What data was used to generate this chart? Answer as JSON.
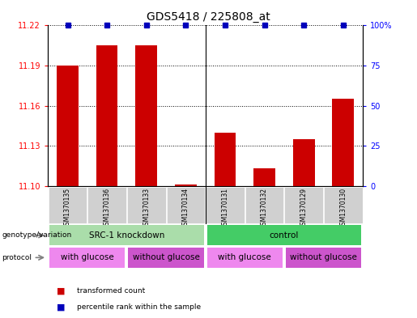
{
  "title": "GDS5418 / 225808_at",
  "samples": [
    "GSM1370135",
    "GSM1370136",
    "GSM1370133",
    "GSM1370134",
    "GSM1370131",
    "GSM1370132",
    "GSM1370129",
    "GSM1370130"
  ],
  "transformed_counts": [
    11.19,
    11.205,
    11.205,
    11.101,
    11.14,
    11.113,
    11.135,
    11.165
  ],
  "percentile_ranks": [
    100,
    100,
    100,
    100,
    100,
    100,
    100,
    100
  ],
  "ylim_left": [
    11.1,
    11.22
  ],
  "ylim_right": [
    0,
    100
  ],
  "yticks_left": [
    11.1,
    11.13,
    11.16,
    11.19,
    11.22
  ],
  "yticks_right": [
    0,
    25,
    50,
    75,
    100
  ],
  "bar_color": "#cc0000",
  "dot_color": "#0000bb",
  "genotype_groups": [
    {
      "label": "SRC-1 knockdown",
      "start": 0,
      "end": 4,
      "color": "#aaddaa"
    },
    {
      "label": "control",
      "start": 4,
      "end": 8,
      "color": "#44cc66"
    }
  ],
  "protocol_groups": [
    {
      "label": "with glucose",
      "start": 0,
      "end": 2,
      "color": "#ee88ee"
    },
    {
      "label": "without glucose",
      "start": 2,
      "end": 4,
      "color": "#cc55cc"
    },
    {
      "label": "with glucose",
      "start": 4,
      "end": 6,
      "color": "#ee88ee"
    },
    {
      "label": "without glucose",
      "start": 6,
      "end": 8,
      "color": "#cc55cc"
    }
  ],
  "legend_items": [
    {
      "label": "transformed count",
      "color": "#cc0000"
    },
    {
      "label": "percentile rank within the sample",
      "color": "#0000bb"
    }
  ]
}
